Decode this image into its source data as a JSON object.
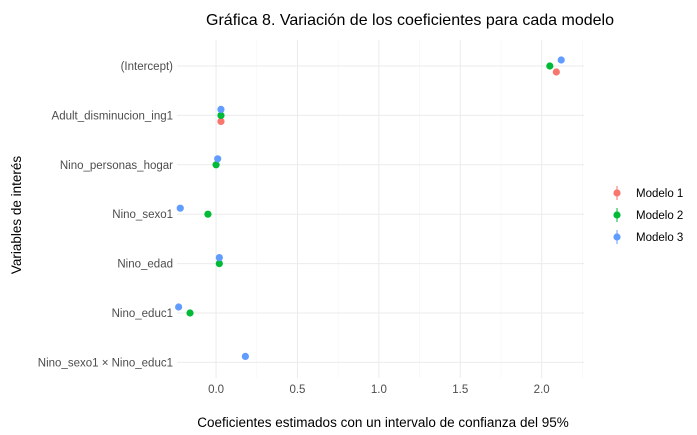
{
  "chart_data": {
    "type": "scatter",
    "title": "Gráfica 8. Variación de los coeficientes para cada modelo",
    "xlabel": "Coeficientes estimados con un intervalo de confianza del 95%",
    "ylabel": "Variables de interés",
    "xlim": [
      -0.24,
      2.26
    ],
    "x_ticks": [
      "0.0",
      "0.5",
      "1.0",
      "1.5",
      "2.0"
    ],
    "x_tick_values": [
      0.0,
      0.5,
      1.0,
      1.5,
      2.0
    ],
    "categories": [
      "(Intercept)",
      "Adult_disminucion_ing1",
      "Nino_personas_hogar",
      "Nino_sexo1",
      "Nino_edad",
      "Nino_educ1",
      "Nino_sexo1 × Nino_educ1"
    ],
    "grid": true,
    "legend_position": "right",
    "series": [
      {
        "name": "Modelo 1",
        "color": "#F8766D",
        "values": [
          2.09,
          0.03,
          null,
          null,
          null,
          null,
          null
        ]
      },
      {
        "name": "Modelo 2",
        "color": "#00BA38",
        "values": [
          2.05,
          0.03,
          0.0,
          -0.05,
          0.02,
          -0.16,
          null
        ]
      },
      {
        "name": "Modelo 3",
        "color": "#619CFF",
        "values": [
          2.12,
          0.03,
          0.01,
          -0.22,
          0.02,
          -0.23,
          0.18
        ]
      }
    ]
  }
}
